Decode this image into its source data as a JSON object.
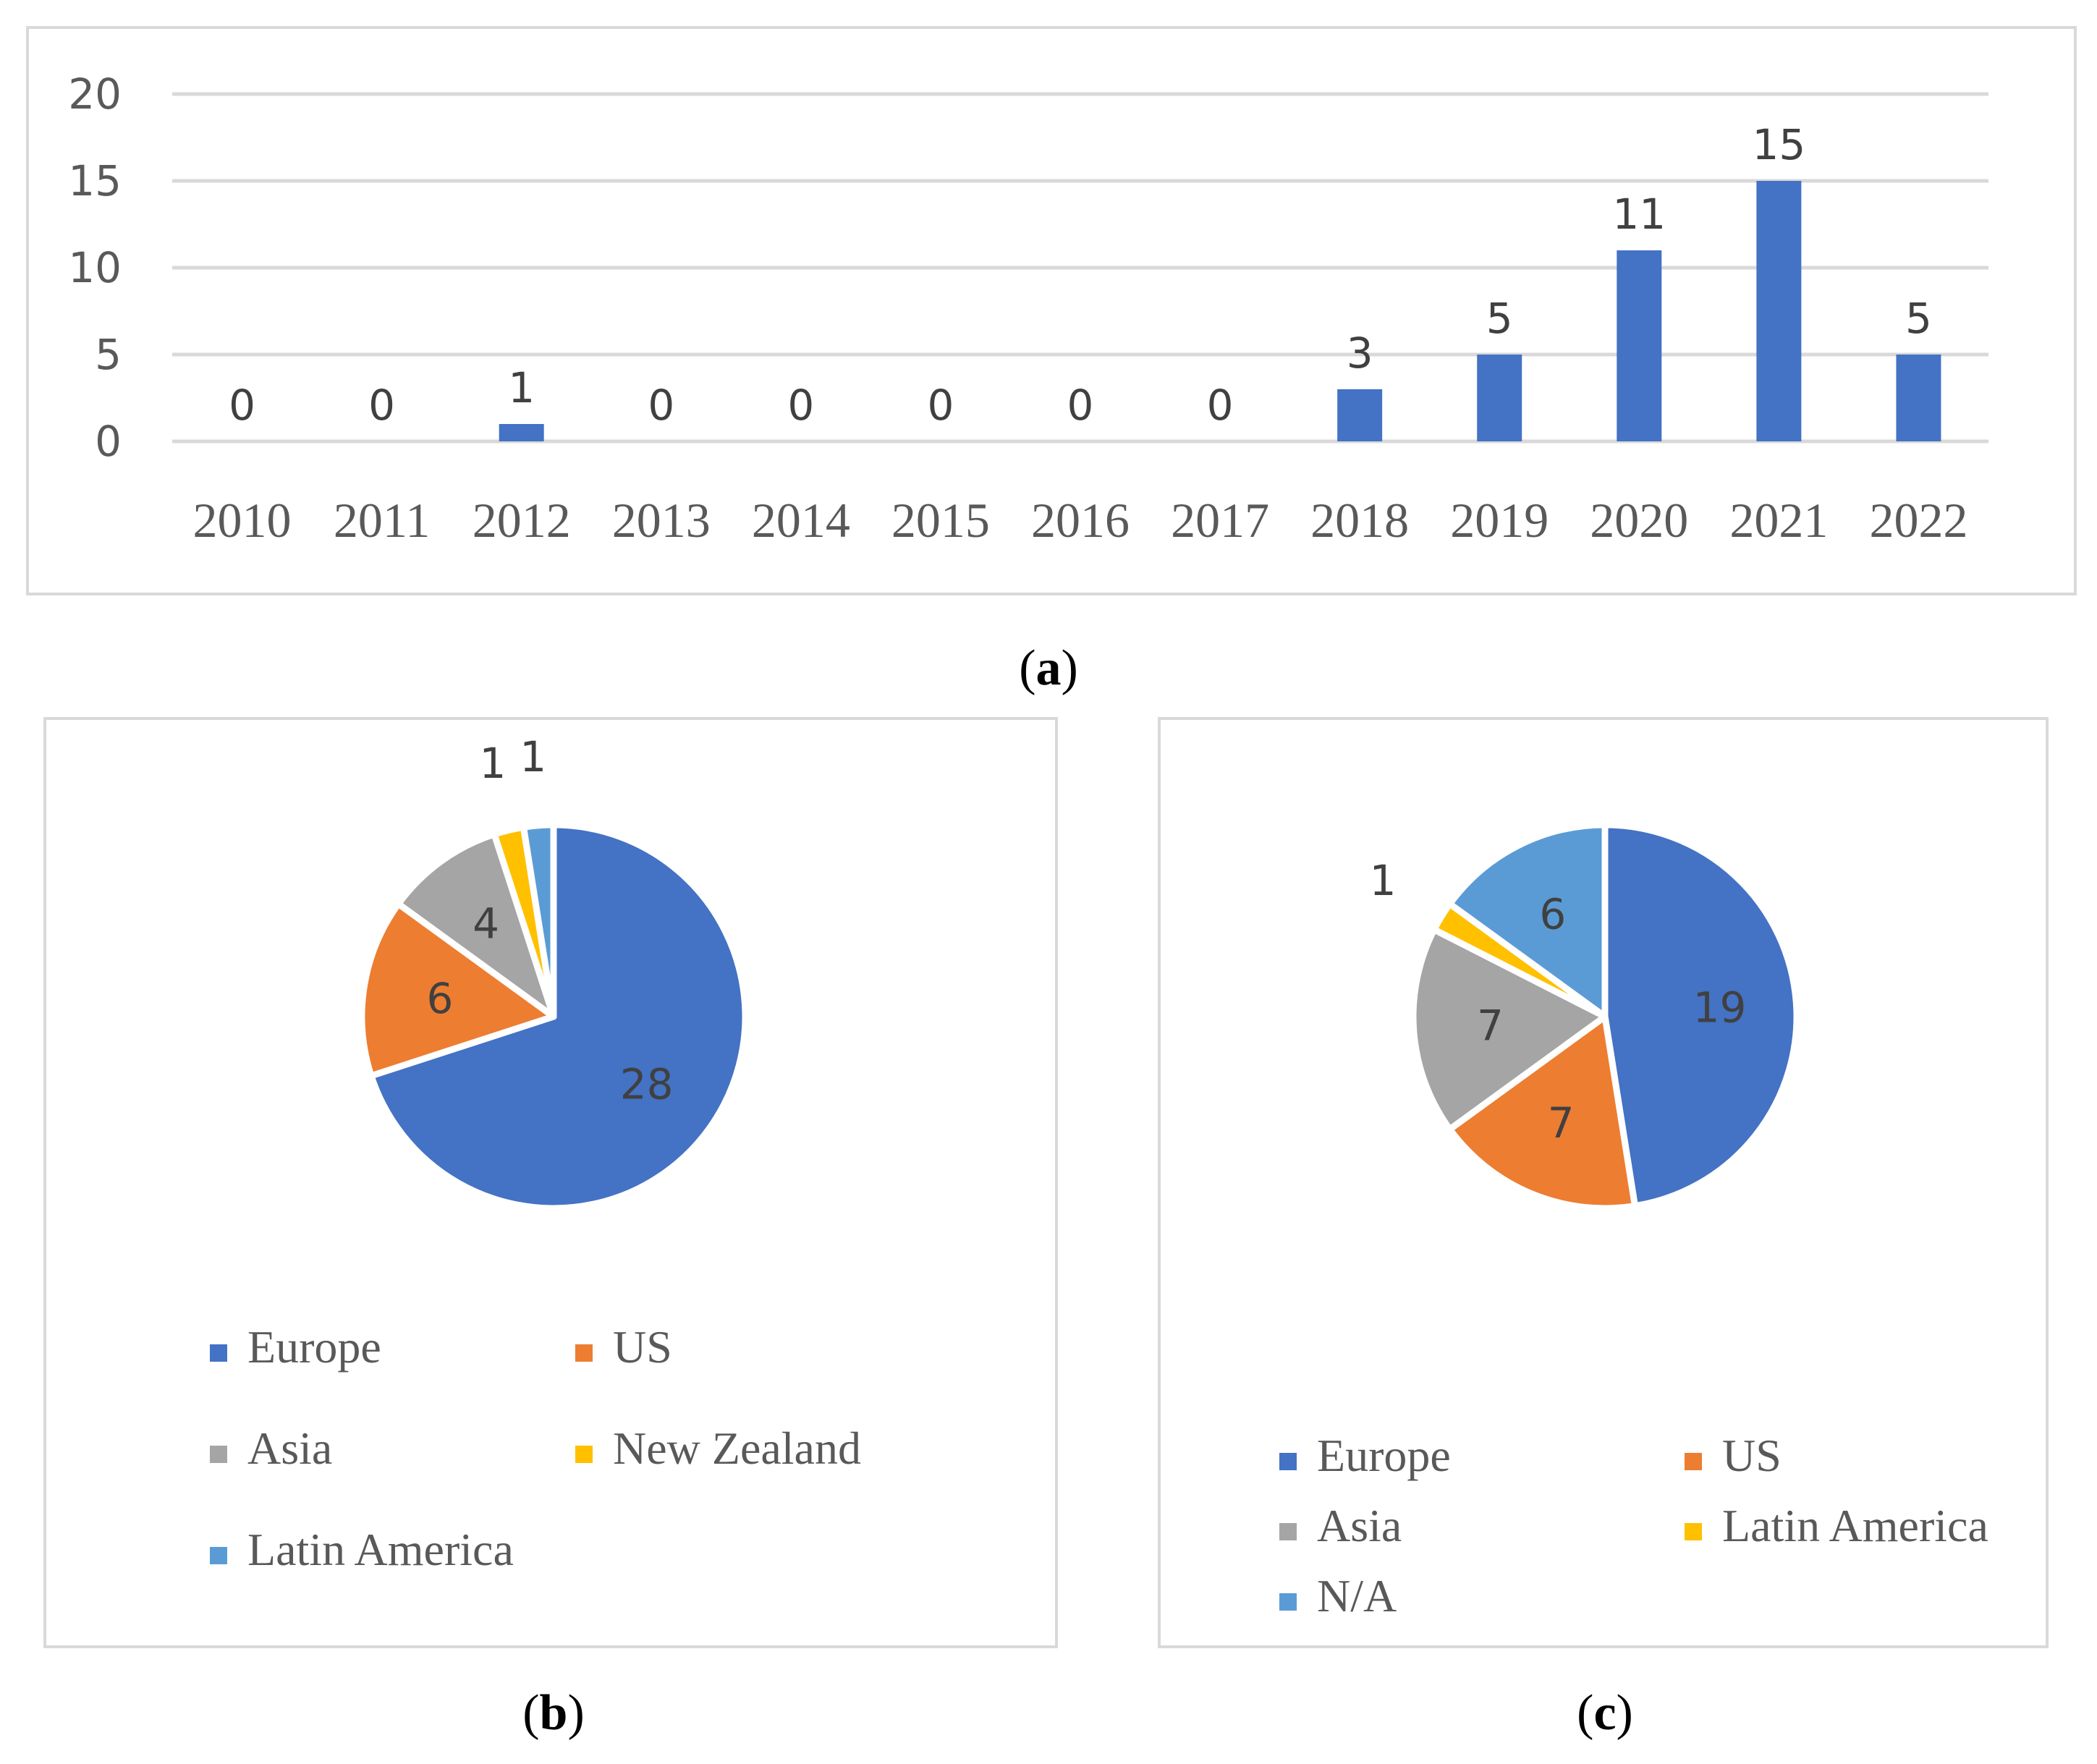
{
  "colors": {
    "Europe": "#4472c4",
    "US": "#ed7d31",
    "Asia": "#a5a5a5",
    "New Zealand": "#ffc000",
    "Latin America": "#5b9bd5",
    "N/A": "#5b9bd5",
    "gridline": "#d9d9d9",
    "frame": "#d9d9d9"
  },
  "chart_data": [
    {
      "type": "bar",
      "panel": "a",
      "caption": {
        "open": "(",
        "letter": "a",
        "close": ")"
      },
      "categories": [
        "2010",
        "2011",
        "2012",
        "2013",
        "2014",
        "2015",
        "2016",
        "2017",
        "2018",
        "2019",
        "2020",
        "2021",
        "2022"
      ],
      "values": [
        0,
        0,
        1,
        0,
        0,
        0,
        0,
        0,
        3,
        5,
        11,
        15,
        5
      ],
      "ylim": [
        0,
        20
      ],
      "yticks": [
        0,
        5,
        10,
        15,
        20
      ],
      "grid": true,
      "data_labels": true,
      "bar_color": "#4472c4"
    },
    {
      "type": "pie",
      "panel": "b",
      "caption": {
        "open": "(",
        "letter": "b",
        "close": ")"
      },
      "slices": [
        {
          "label": "Europe",
          "value": 28,
          "color": "#4472c4"
        },
        {
          "label": "US",
          "value": 6,
          "color": "#ed7d31"
        },
        {
          "label": "Asia",
          "value": 4,
          "color": "#a5a5a5"
        },
        {
          "label": "New Zealand",
          "value": 1,
          "color": "#ffc000"
        },
        {
          "label": "Latin America",
          "value": 1,
          "color": "#5b9bd5"
        }
      ],
      "legend": "bottom"
    },
    {
      "type": "pie",
      "panel": "c",
      "caption": {
        "open": "(",
        "letter": "c",
        "close": ")"
      },
      "slices": [
        {
          "label": "Europe",
          "value": 19,
          "color": "#4472c4"
        },
        {
          "label": "US",
          "value": 7,
          "color": "#ed7d31"
        },
        {
          "label": "Asia",
          "value": 7,
          "color": "#a5a5a5"
        },
        {
          "label": "Latin America",
          "value": 1,
          "color": "#ffc000"
        },
        {
          "label": "N/A",
          "value": 6,
          "color": "#5b9bd5"
        }
      ],
      "legend": "bottom"
    }
  ]
}
